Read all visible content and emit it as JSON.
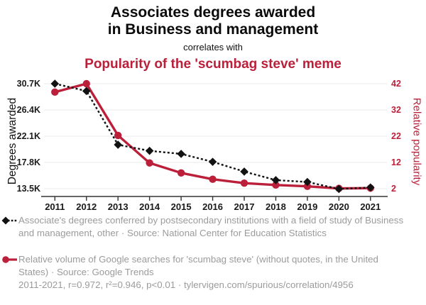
{
  "header": {
    "title_line1": "Associates degrees awarded",
    "title_line2": "in Business and management",
    "connector": "correlates with",
    "subtitle": "Popularity of the 'scumbag steve' meme"
  },
  "colors": {
    "accent_red": "#bb1f3a",
    "series_black": "#121212",
    "legend_gray": "#9b9b9b",
    "gridline": "#ededed",
    "axis_line": "#333333"
  },
  "chart_data": {
    "type": "line",
    "title": "Associates degrees awarded in Business and management correlates with Popularity of the 'scumbag steve' meme",
    "x_labels": [
      "2011",
      "2012",
      "2013",
      "2014",
      "2015",
      "2016",
      "2017",
      "2018",
      "2019",
      "2020",
      "2021"
    ],
    "grid": "horizontal",
    "legend_position": "bottom",
    "left_axis": {
      "label": "Degrees awarded",
      "ticks": [
        "30.7K",
        "26.4K",
        "22.1K",
        "17.8K",
        "13.5K"
      ],
      "tick_values": [
        30700,
        26400,
        22100,
        17800,
        13500
      ],
      "range": [
        13500,
        30700
      ]
    },
    "right_axis": {
      "label": "Relative popularity",
      "ticks": [
        "42",
        "32",
        "22",
        "12",
        "2"
      ],
      "tick_values": [
        42,
        32,
        22,
        12,
        2
      ],
      "range": [
        2,
        42
      ]
    },
    "series": [
      {
        "name": "Associate's degrees in Business and management, other",
        "axis": "left",
        "line_style": "dashed",
        "marker": "diamond",
        "color": "#121212",
        "values": [
          30700,
          29500,
          20700,
          19700,
          19200,
          17900,
          16300,
          14900,
          14600,
          13450,
          13700
        ]
      },
      {
        "name": "Google searches for 'scumbag steve'",
        "axis": "right",
        "line_style": "solid",
        "marker": "circle",
        "color": "#bb1f3a",
        "values": [
          38.8,
          42,
          22.3,
          11.8,
          8,
          5.6,
          4.1,
          3.4,
          2.9,
          2.1,
          2.2
        ]
      }
    ]
  },
  "legend": [
    {
      "text": "Associate's degrees conferred by postsecondary institutions with a field of study of Business and management, other · Source: National Center for Education Statistics"
    },
    {
      "text": "Relative volume of Google searches for 'scumbag steve' (without quotes, in the United States) · Source: Google Trends"
    }
  ],
  "footer": {
    "text": "2011-2021, r=0.972, r²=0.946, p<0.01 · tylervigen.com/spurious/correlation/4956"
  }
}
